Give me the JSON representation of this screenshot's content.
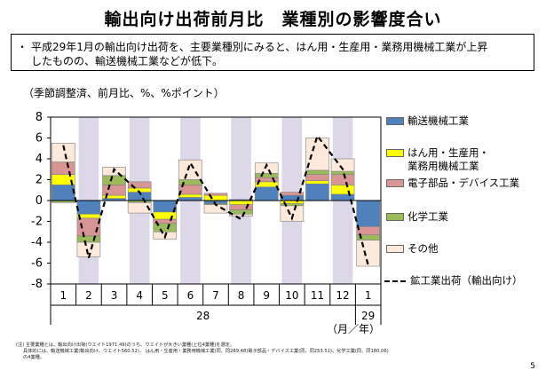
{
  "title": "輸出向け出荷前月比　業種別の影響度合い",
  "summary": {
    "bullet": "・",
    "line1": "平成29年1月の輸出向け出荷を、主要業種別にみると、はん用・生産用・業務用機械工業が上昇",
    "line2": "したものの、輸送機械工業などが低下。"
  },
  "units_label": "（季節調整済、前月比、%、%ポイント）",
  "period_label": "（月／年）",
  "note": {
    "line1": "(注) 主要業種とは、輸出向け出荷(ウエイト1971.49)のうち、ウエイトが大きい業種(上位4業種)を選定。",
    "line2": "具体的には、輸送機械工業(輸出向け、ウエイト560.52)、 はん用・生産用・業務用機械工業(同、同289.48)電子部品・デバイス工業(同、同253.51)、化学工業(同、同180.06)",
    "line3": "の4業種。"
  },
  "page_number": "5",
  "colors": {
    "transport": "#4f81bd",
    "machinery": "#ffff00",
    "electronic": "#d99594",
    "chemical": "#9bbb59",
    "other": "#fde9d9",
    "shade": "#dcd8e8"
  },
  "chart_data": {
    "type": "bar",
    "stacked": true,
    "categories": [
      "1",
      "2",
      "3",
      "4",
      "5",
      "6",
      "7",
      "8",
      "9",
      "10",
      "11",
      "12",
      "1"
    ],
    "year_labels": [
      {
        "label": "28",
        "start": 0,
        "end": 11
      },
      {
        "label": "29",
        "start": 12,
        "end": 12
      }
    ],
    "ylim": [
      -8,
      8
    ],
    "yticks": [
      -8,
      -6,
      -4,
      -2,
      0,
      2,
      4,
      6,
      8
    ],
    "shaded_categories": [
      1,
      3,
      5,
      7,
      9,
      11
    ],
    "series": [
      {
        "name": "輸送機械工業",
        "color": "#4f81bd",
        "values": [
          1.5,
          -1.3,
          0.2,
          0.8,
          -1.1,
          0.3,
          -0.3,
          0.1,
          1.3,
          0.5,
          1.6,
          0.6,
          -2.5
        ]
      },
      {
        "name": "はん用・生産用・\n業務用機械工業",
        "color": "#ffff00",
        "values": [
          1.0,
          -0.4,
          0.3,
          0.4,
          -0.7,
          0.3,
          0.5,
          -0.4,
          0.5,
          -0.3,
          0.3,
          0.9,
          0.0
        ]
      },
      {
        "name": "電子部品・デバイス工業",
        "color": "#d99594",
        "values": [
          1.2,
          -1.7,
          1.0,
          0.6,
          -0.4,
          0.9,
          0.2,
          -0.5,
          0.4,
          0.3,
          0.6,
          1.0,
          -0.8
        ]
      },
      {
        "name": "化学工業",
        "color": "#9bbb59",
        "values": [
          -0.2,
          -0.6,
          0.9,
          -0.2,
          -0.8,
          0.5,
          -0.1,
          -0.4,
          0.4,
          -0.2,
          0.4,
          0.3,
          -0.5
        ]
      },
      {
        "name": "その他",
        "color": "#fde9d9",
        "values": [
          1.8,
          -1.4,
          0.8,
          -1.0,
          -0.7,
          1.9,
          -0.8,
          -0.2,
          1.0,
          -1.5,
          3.1,
          1.2,
          -2.5
        ]
      }
    ],
    "line_series": {
      "name": "鉱工業出荷（輸出向け）",
      "values": [
        5.3,
        -5.5,
        3.0,
        0.8,
        -3.5,
        3.6,
        -0.4,
        -1.8,
        3.4,
        -1.7,
        6.2,
        3.0,
        -6.2
      ]
    },
    "legend_position": "right"
  }
}
